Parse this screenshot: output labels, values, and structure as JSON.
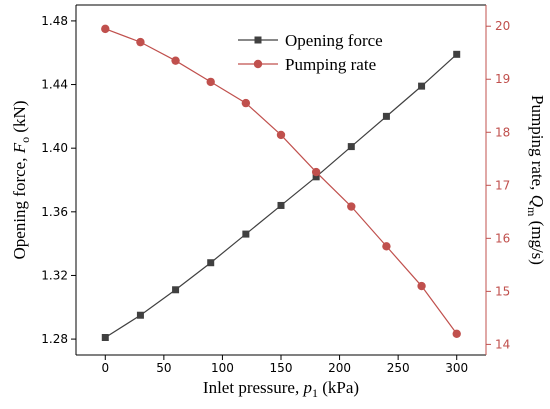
{
  "chart_data": {
    "type": "line",
    "x": [
      0,
      30,
      60,
      90,
      120,
      150,
      180,
      210,
      240,
      270,
      300
    ],
    "xlim": [
      -25,
      325
    ],
    "x_ticks": [
      "0",
      "50",
      "100",
      "150",
      "200",
      "250",
      "300"
    ],
    "x_tick_values": [
      0,
      50,
      100,
      150,
      200,
      250,
      300
    ],
    "xlabel": {
      "main": "Inlet pressure, ",
      "var": "p",
      "sub": "1",
      "unit": " (kPa)"
    },
    "y_left": {
      "label": {
        "main": "Opening force, ",
        "var": "F",
        "sub": "o",
        "unit": " (kN)"
      },
      "lim": [
        1.27,
        1.49
      ],
      "ticks": [
        "1.28",
        "1.32",
        "1.36",
        "1.40",
        "1.44",
        "1.48"
      ],
      "tick_values": [
        1.28,
        1.32,
        1.36,
        1.4,
        1.44,
        1.48
      ],
      "color": "#000000"
    },
    "y_right": {
      "label": {
        "main": "Pumping rate, ",
        "var": "Q",
        "sub": "m",
        "unit": " (mg/s)"
      },
      "lim": [
        13.8,
        20.4
      ],
      "ticks": [
        "14",
        "15",
        "16",
        "17",
        "18",
        "19",
        "20"
      ],
      "tick_values": [
        14,
        15,
        16,
        17,
        18,
        19,
        20
      ],
      "color": "#c0504d"
    },
    "series": [
      {
        "name": "Opening force",
        "axis": "left",
        "marker": "square",
        "color": "#404040",
        "values": [
          1.281,
          1.295,
          1.311,
          1.328,
          1.346,
          1.364,
          1.382,
          1.401,
          1.42,
          1.439,
          1.459
        ]
      },
      {
        "name": "Pumping rate",
        "axis": "right",
        "marker": "circle",
        "color": "#c0504d",
        "values": [
          19.95,
          19.7,
          19.35,
          18.95,
          18.55,
          17.95,
          17.25,
          16.6,
          15.85,
          15.1,
          14.2
        ]
      }
    ],
    "legend_position": "top-right"
  }
}
